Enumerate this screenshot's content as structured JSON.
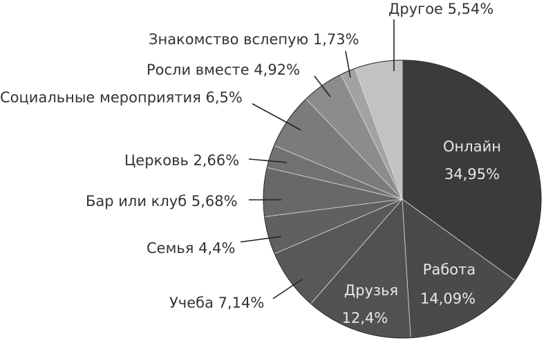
{
  "chart_data": {
    "type": "pie",
    "start": "12 o'clock",
    "direction": "clockwise",
    "slices": [
      {
        "label": "Онлайн",
        "value": 34.95,
        "text": "34,95%",
        "color": "#3b3b3b"
      },
      {
        "label": "Работа",
        "value": 14.09,
        "text": "14,09%",
        "color": "#4a4a4a"
      },
      {
        "label": "Друзья",
        "value": 12.4,
        "text": "12,4%",
        "color": "#515151"
      },
      {
        "label": "Учеба",
        "value": 7.14,
        "text": "Учеба 7,14%",
        "color": "#585858"
      },
      {
        "label": "Семья",
        "value": 4.4,
        "text": "Семья 4,4%",
        "color": "#606060"
      },
      {
        "label": "Бар или клуб",
        "value": 5.68,
        "text": "Бар или клуб 5,68%",
        "color": "#686868"
      },
      {
        "label": "Церковь",
        "value": 2.66,
        "text": "Церковь 2,66%",
        "color": "#717171"
      },
      {
        "label": "Социальные мероприятия",
        "value": 6.5,
        "text": "Социальные мероприятия 6,5%",
        "color": "#7b7b7b"
      },
      {
        "label": "Росли вместе",
        "value": 4.92,
        "text": "Росли вместе 4,92%",
        "color": "#8c8c8c"
      },
      {
        "label": "Знакомство вслепую",
        "value": 1.73,
        "text": "Знакомство вслепую 1,73%",
        "color": "#a2a2a2"
      },
      {
        "label": "Другое",
        "value": 5.54,
        "text": "Другое 5,54%",
        "color": "#c2c2c2"
      }
    ]
  }
}
